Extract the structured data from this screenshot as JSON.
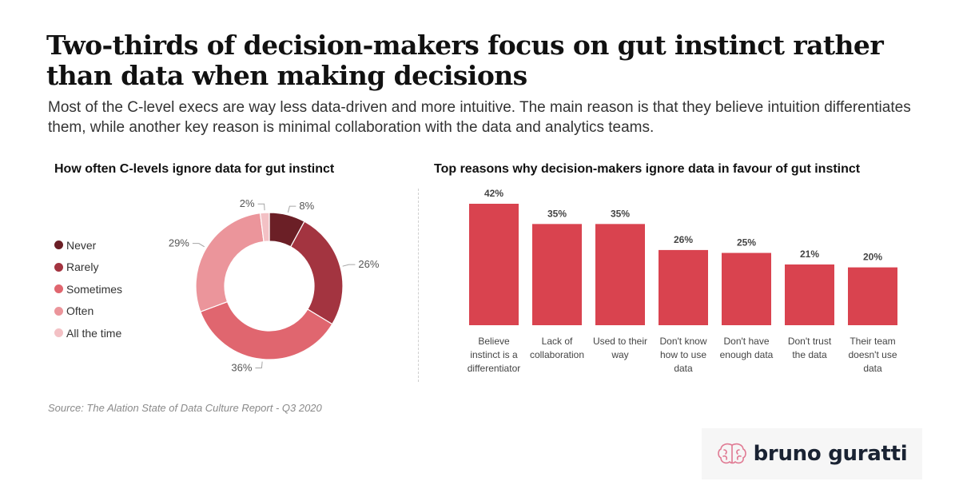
{
  "header": {
    "title": "Two-thirds of decision-makers focus on gut instinct rather than data when making decisions",
    "subtitle": "Most of the C-level execs are way less data-driven and more intuitive. The main reason is that they believe intuition differentiates them, while another key reason is minimal collaboration with the data and analytics teams."
  },
  "source": "Source: The Alation State of Data Culture Report - Q3 2020",
  "brand": {
    "name": "bruno guratti",
    "icon": "brain-icon"
  },
  "chart_data": [
    {
      "type": "pie",
      "title": "How often C-levels ignore data for gut instinct",
      "categories": [
        "Never",
        "Rarely",
        "Sometimes",
        "Often",
        "All the time"
      ],
      "values": [
        8,
        26,
        36,
        29,
        2
      ],
      "labels": [
        "8%",
        "26%",
        "36%",
        "29%",
        "2%"
      ],
      "colors": [
        "#6b1f26",
        "#a33440",
        "#e0666f",
        "#eb959b",
        "#f3c1c5"
      ],
      "legend": "left",
      "hole": true
    },
    {
      "type": "bar",
      "title": "Top reasons why decision-makers ignore data in favour of gut instinct",
      "categories": [
        [
          "Believe",
          "instinct is a",
          "differentiator"
        ],
        [
          "Lack of",
          "collaboration"
        ],
        [
          "Used to their",
          "way"
        ],
        [
          "Don't know",
          "how to use",
          "data"
        ],
        [
          "Don't have",
          "enough data"
        ],
        [
          "Don't trust",
          "the data"
        ],
        [
          "Their team",
          "doesn't use",
          "data"
        ]
      ],
      "values": [
        42,
        35,
        35,
        26,
        25,
        21,
        20
      ],
      "labels": [
        "42%",
        "35%",
        "35%",
        "26%",
        "25%",
        "21%",
        "20%"
      ],
      "color": "#d9434f",
      "ylim": [
        0,
        50
      ],
      "grid": false
    }
  ]
}
